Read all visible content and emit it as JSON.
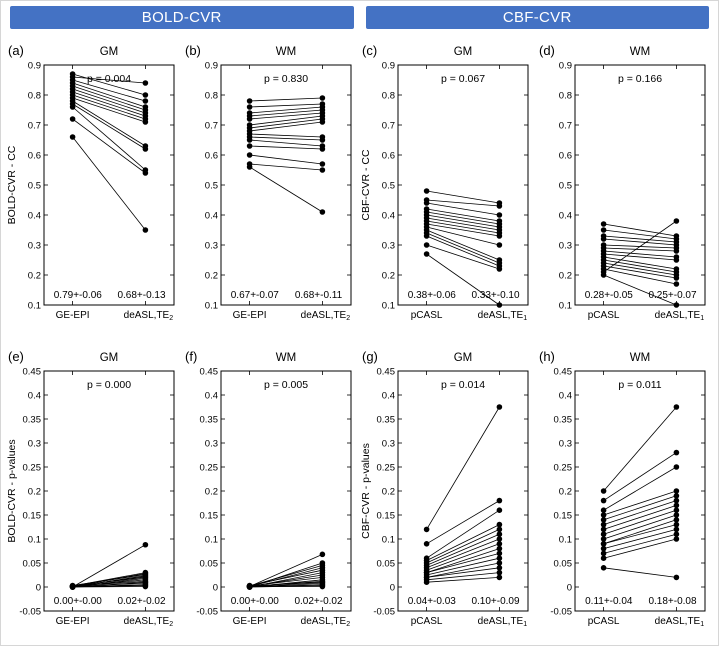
{
  "figure": {
    "accent_color": "#4472C4",
    "headers": [
      {
        "label": "BOLD-CVR"
      },
      {
        "label": "CBF-CVR"
      }
    ]
  },
  "chart_data": [
    {
      "type": "line",
      "letter": "(a)",
      "title": "GM",
      "p_label": "p = 0.004",
      "ylabel": "BOLD-CVR - CC",
      "ylim": [
        0.1,
        0.9
      ],
      "ytick_step": 0.1,
      "x_labels": [
        {
          "text": "GE-EPI",
          "sub": ""
        },
        {
          "text": "deASL,TE",
          "sub": "2"
        }
      ],
      "stats": [
        "0.79+-0.06",
        "0.68+-0.13"
      ],
      "pairs": [
        [
          0.87,
          0.8
        ],
        [
          0.86,
          0.84
        ],
        [
          0.85,
          0.78
        ],
        [
          0.84,
          0.76
        ],
        [
          0.83,
          0.75
        ],
        [
          0.82,
          0.74
        ],
        [
          0.81,
          0.73
        ],
        [
          0.8,
          0.72
        ],
        [
          0.79,
          0.71
        ],
        [
          0.78,
          0.63
        ],
        [
          0.77,
          0.62
        ],
        [
          0.76,
          0.55
        ],
        [
          0.72,
          0.54
        ],
        [
          0.66,
          0.35
        ]
      ]
    },
    {
      "type": "line",
      "letter": "(b)",
      "title": "WM",
      "p_label": "p = 0.830",
      "ylabel": "",
      "ylim": [
        0.1,
        0.9
      ],
      "ytick_step": 0.1,
      "x_labels": [
        {
          "text": "GE-EPI",
          "sub": ""
        },
        {
          "text": "deASL,TE",
          "sub": "2"
        }
      ],
      "stats": [
        "0.67+-0.07",
        "0.68+-0.11"
      ],
      "pairs": [
        [
          0.78,
          0.79
        ],
        [
          0.76,
          0.77
        ],
        [
          0.74,
          0.76
        ],
        [
          0.73,
          0.75
        ],
        [
          0.72,
          0.74
        ],
        [
          0.7,
          0.73
        ],
        [
          0.69,
          0.72
        ],
        [
          0.68,
          0.71
        ],
        [
          0.67,
          0.66
        ],
        [
          0.66,
          0.65
        ],
        [
          0.65,
          0.63
        ],
        [
          0.63,
          0.62
        ],
        [
          0.6,
          0.57
        ],
        [
          0.57,
          0.55
        ],
        [
          0.56,
          0.41
        ]
      ]
    },
    {
      "type": "line",
      "letter": "(c)",
      "title": "GM",
      "p_label": "p = 0.067",
      "ylabel": "CBF-CVR - CC",
      "ylim": [
        0.1,
        0.9
      ],
      "ytick_step": 0.1,
      "x_labels": [
        {
          "text": "pCASL",
          "sub": ""
        },
        {
          "text": "deASL,TE",
          "sub": "1"
        }
      ],
      "stats": [
        "0.38+-0.06",
        "0.33+-0.10"
      ],
      "pairs": [
        [
          0.48,
          0.44
        ],
        [
          0.45,
          0.43
        ],
        [
          0.44,
          0.4
        ],
        [
          0.42,
          0.38
        ],
        [
          0.41,
          0.37
        ],
        [
          0.4,
          0.36
        ],
        [
          0.39,
          0.35
        ],
        [
          0.38,
          0.34
        ],
        [
          0.37,
          0.33
        ],
        [
          0.36,
          0.3
        ],
        [
          0.35,
          0.25
        ],
        [
          0.34,
          0.24
        ],
        [
          0.33,
          0.23
        ],
        [
          0.3,
          0.22
        ],
        [
          0.27,
          0.1
        ]
      ]
    },
    {
      "type": "line",
      "letter": "(d)",
      "title": "WM",
      "p_label": "p = 0.166",
      "ylabel": "",
      "ylim": [
        0.1,
        0.9
      ],
      "ytick_step": 0.1,
      "x_labels": [
        {
          "text": "pCASL",
          "sub": ""
        },
        {
          "text": "deASL,TE",
          "sub": "1"
        }
      ],
      "stats": [
        "0.28+-0.05",
        "0.25+-0.07"
      ],
      "pairs": [
        [
          0.37,
          0.33
        ],
        [
          0.35,
          0.32
        ],
        [
          0.33,
          0.31
        ],
        [
          0.32,
          0.3
        ],
        [
          0.3,
          0.29
        ],
        [
          0.29,
          0.28
        ],
        [
          0.28,
          0.26
        ],
        [
          0.27,
          0.25
        ],
        [
          0.26,
          0.22
        ],
        [
          0.25,
          0.21
        ],
        [
          0.24,
          0.2
        ],
        [
          0.23,
          0.19
        ],
        [
          0.22,
          0.17
        ],
        [
          0.21,
          0.38
        ],
        [
          0.2,
          0.1
        ]
      ]
    },
    {
      "type": "line",
      "letter": "(e)",
      "title": "GM",
      "p_label": "p = 0.000",
      "ylabel": "BOLD-CVR - p-values",
      "ylim": [
        -0.05,
        0.45
      ],
      "ytick_step": 0.05,
      "x_labels": [
        {
          "text": "GE-EPI",
          "sub": ""
        },
        {
          "text": "deASL,TE",
          "sub": "2"
        }
      ],
      "stats": [
        "0.00+-0.00",
        "0.02+-0.02"
      ],
      "pairs": [
        [
          0.0,
          0.088
        ],
        [
          0.002,
          0.03
        ],
        [
          0.001,
          0.028
        ],
        [
          0.003,
          0.026
        ],
        [
          0.0,
          0.024
        ],
        [
          0.001,
          0.022
        ],
        [
          0.002,
          0.02
        ],
        [
          0.0,
          0.018
        ],
        [
          0.001,
          0.015
        ],
        [
          0.002,
          0.012
        ],
        [
          0.0,
          0.01
        ],
        [
          0.001,
          0.008
        ],
        [
          0.0,
          0.005
        ],
        [
          0.001,
          0.003
        ],
        [
          0.0,
          0.001
        ]
      ]
    },
    {
      "type": "line",
      "letter": "(f)",
      "title": "WM",
      "p_label": "p = 0.005",
      "ylabel": "",
      "ylim": [
        -0.05,
        0.45
      ],
      "ytick_step": 0.05,
      "x_labels": [
        {
          "text": "GE-EPI",
          "sub": ""
        },
        {
          "text": "deASL,TE",
          "sub": "2"
        }
      ],
      "stats": [
        "0.00+-0.00",
        "0.02+-0.02"
      ],
      "pairs": [
        [
          0.001,
          0.068
        ],
        [
          0.0,
          0.05
        ],
        [
          0.002,
          0.045
        ],
        [
          0.001,
          0.04
        ],
        [
          0.003,
          0.035
        ],
        [
          0.0,
          0.03
        ],
        [
          0.001,
          0.025
        ],
        [
          0.002,
          0.02
        ],
        [
          0.0,
          0.015
        ],
        [
          0.001,
          0.012
        ],
        [
          0.002,
          0.01
        ],
        [
          0.0,
          0.008
        ],
        [
          0.001,
          0.005
        ],
        [
          0.0,
          0.003
        ],
        [
          0.001,
          0.001
        ]
      ]
    },
    {
      "type": "line",
      "letter": "(g)",
      "title": "GM",
      "p_label": "p = 0.014",
      "ylabel": "CBF-CVR - p-values",
      "ylim": [
        -0.05,
        0.45
      ],
      "ytick_step": 0.05,
      "x_labels": [
        {
          "text": "pCASL",
          "sub": ""
        },
        {
          "text": "deASL,TE",
          "sub": "1"
        }
      ],
      "stats": [
        "0.04+-0.03",
        "0.10+-0.09"
      ],
      "pairs": [
        [
          0.12,
          0.375
        ],
        [
          0.09,
          0.18
        ],
        [
          0.06,
          0.16
        ],
        [
          0.055,
          0.13
        ],
        [
          0.05,
          0.12
        ],
        [
          0.045,
          0.11
        ],
        [
          0.04,
          0.1
        ],
        [
          0.035,
          0.09
        ],
        [
          0.03,
          0.08
        ],
        [
          0.03,
          0.07
        ],
        [
          0.025,
          0.06
        ],
        [
          0.02,
          0.05
        ],
        [
          0.02,
          0.04
        ],
        [
          0.015,
          0.03
        ],
        [
          0.01,
          0.02
        ]
      ]
    },
    {
      "type": "line",
      "letter": "(h)",
      "title": "WM",
      "p_label": "p = 0.011",
      "ylabel": "",
      "ylim": [
        -0.05,
        0.45
      ],
      "ytick_step": 0.05,
      "x_labels": [
        {
          "text": "pCASL",
          "sub": ""
        },
        {
          "text": "deASL,TE",
          "sub": "1"
        }
      ],
      "stats": [
        "0.11+-0.04",
        "0.18+-0.08"
      ],
      "pairs": [
        [
          0.2,
          0.375
        ],
        [
          0.18,
          0.28
        ],
        [
          0.16,
          0.25
        ],
        [
          0.15,
          0.2
        ],
        [
          0.14,
          0.19
        ],
        [
          0.13,
          0.18
        ],
        [
          0.12,
          0.17
        ],
        [
          0.11,
          0.16
        ],
        [
          0.1,
          0.15
        ],
        [
          0.09,
          0.14
        ],
        [
          0.09,
          0.13
        ],
        [
          0.08,
          0.12
        ],
        [
          0.07,
          0.11
        ],
        [
          0.06,
          0.1
        ],
        [
          0.04,
          0.02
        ]
      ]
    }
  ]
}
